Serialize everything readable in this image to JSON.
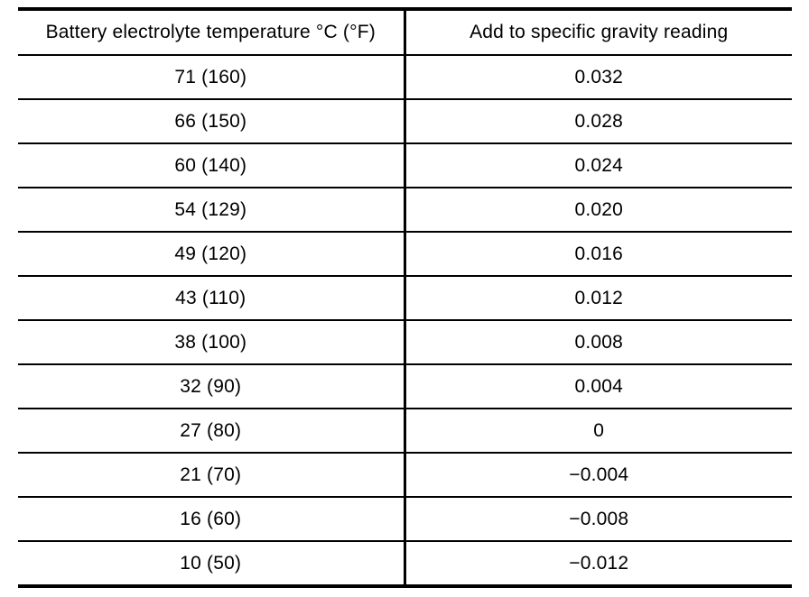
{
  "table": {
    "headers": [
      "Battery electrolyte temperature °C (°F)",
      "Add to specific gravity reading"
    ],
    "rows": [
      {
        "temperature": "71 (160)",
        "correction": "0.032"
      },
      {
        "temperature": "66 (150)",
        "correction": "0.028"
      },
      {
        "temperature": "60 (140)",
        "correction": "0.024"
      },
      {
        "temperature": "54 (129)",
        "correction": "0.020"
      },
      {
        "temperature": "49 (120)",
        "correction": "0.016"
      },
      {
        "temperature": "43 (110)",
        "correction": "0.012"
      },
      {
        "temperature": "38 (100)",
        "correction": "0.008"
      },
      {
        "temperature": "32 (90)",
        "correction": "0.004"
      },
      {
        "temperature": "27 (80)",
        "correction": "0"
      },
      {
        "temperature": "21 (70)",
        "correction": "−0.004"
      },
      {
        "temperature": "16 (60)",
        "correction": "−0.008"
      },
      {
        "temperature": "10 (50)",
        "correction": "−0.012"
      }
    ]
  }
}
